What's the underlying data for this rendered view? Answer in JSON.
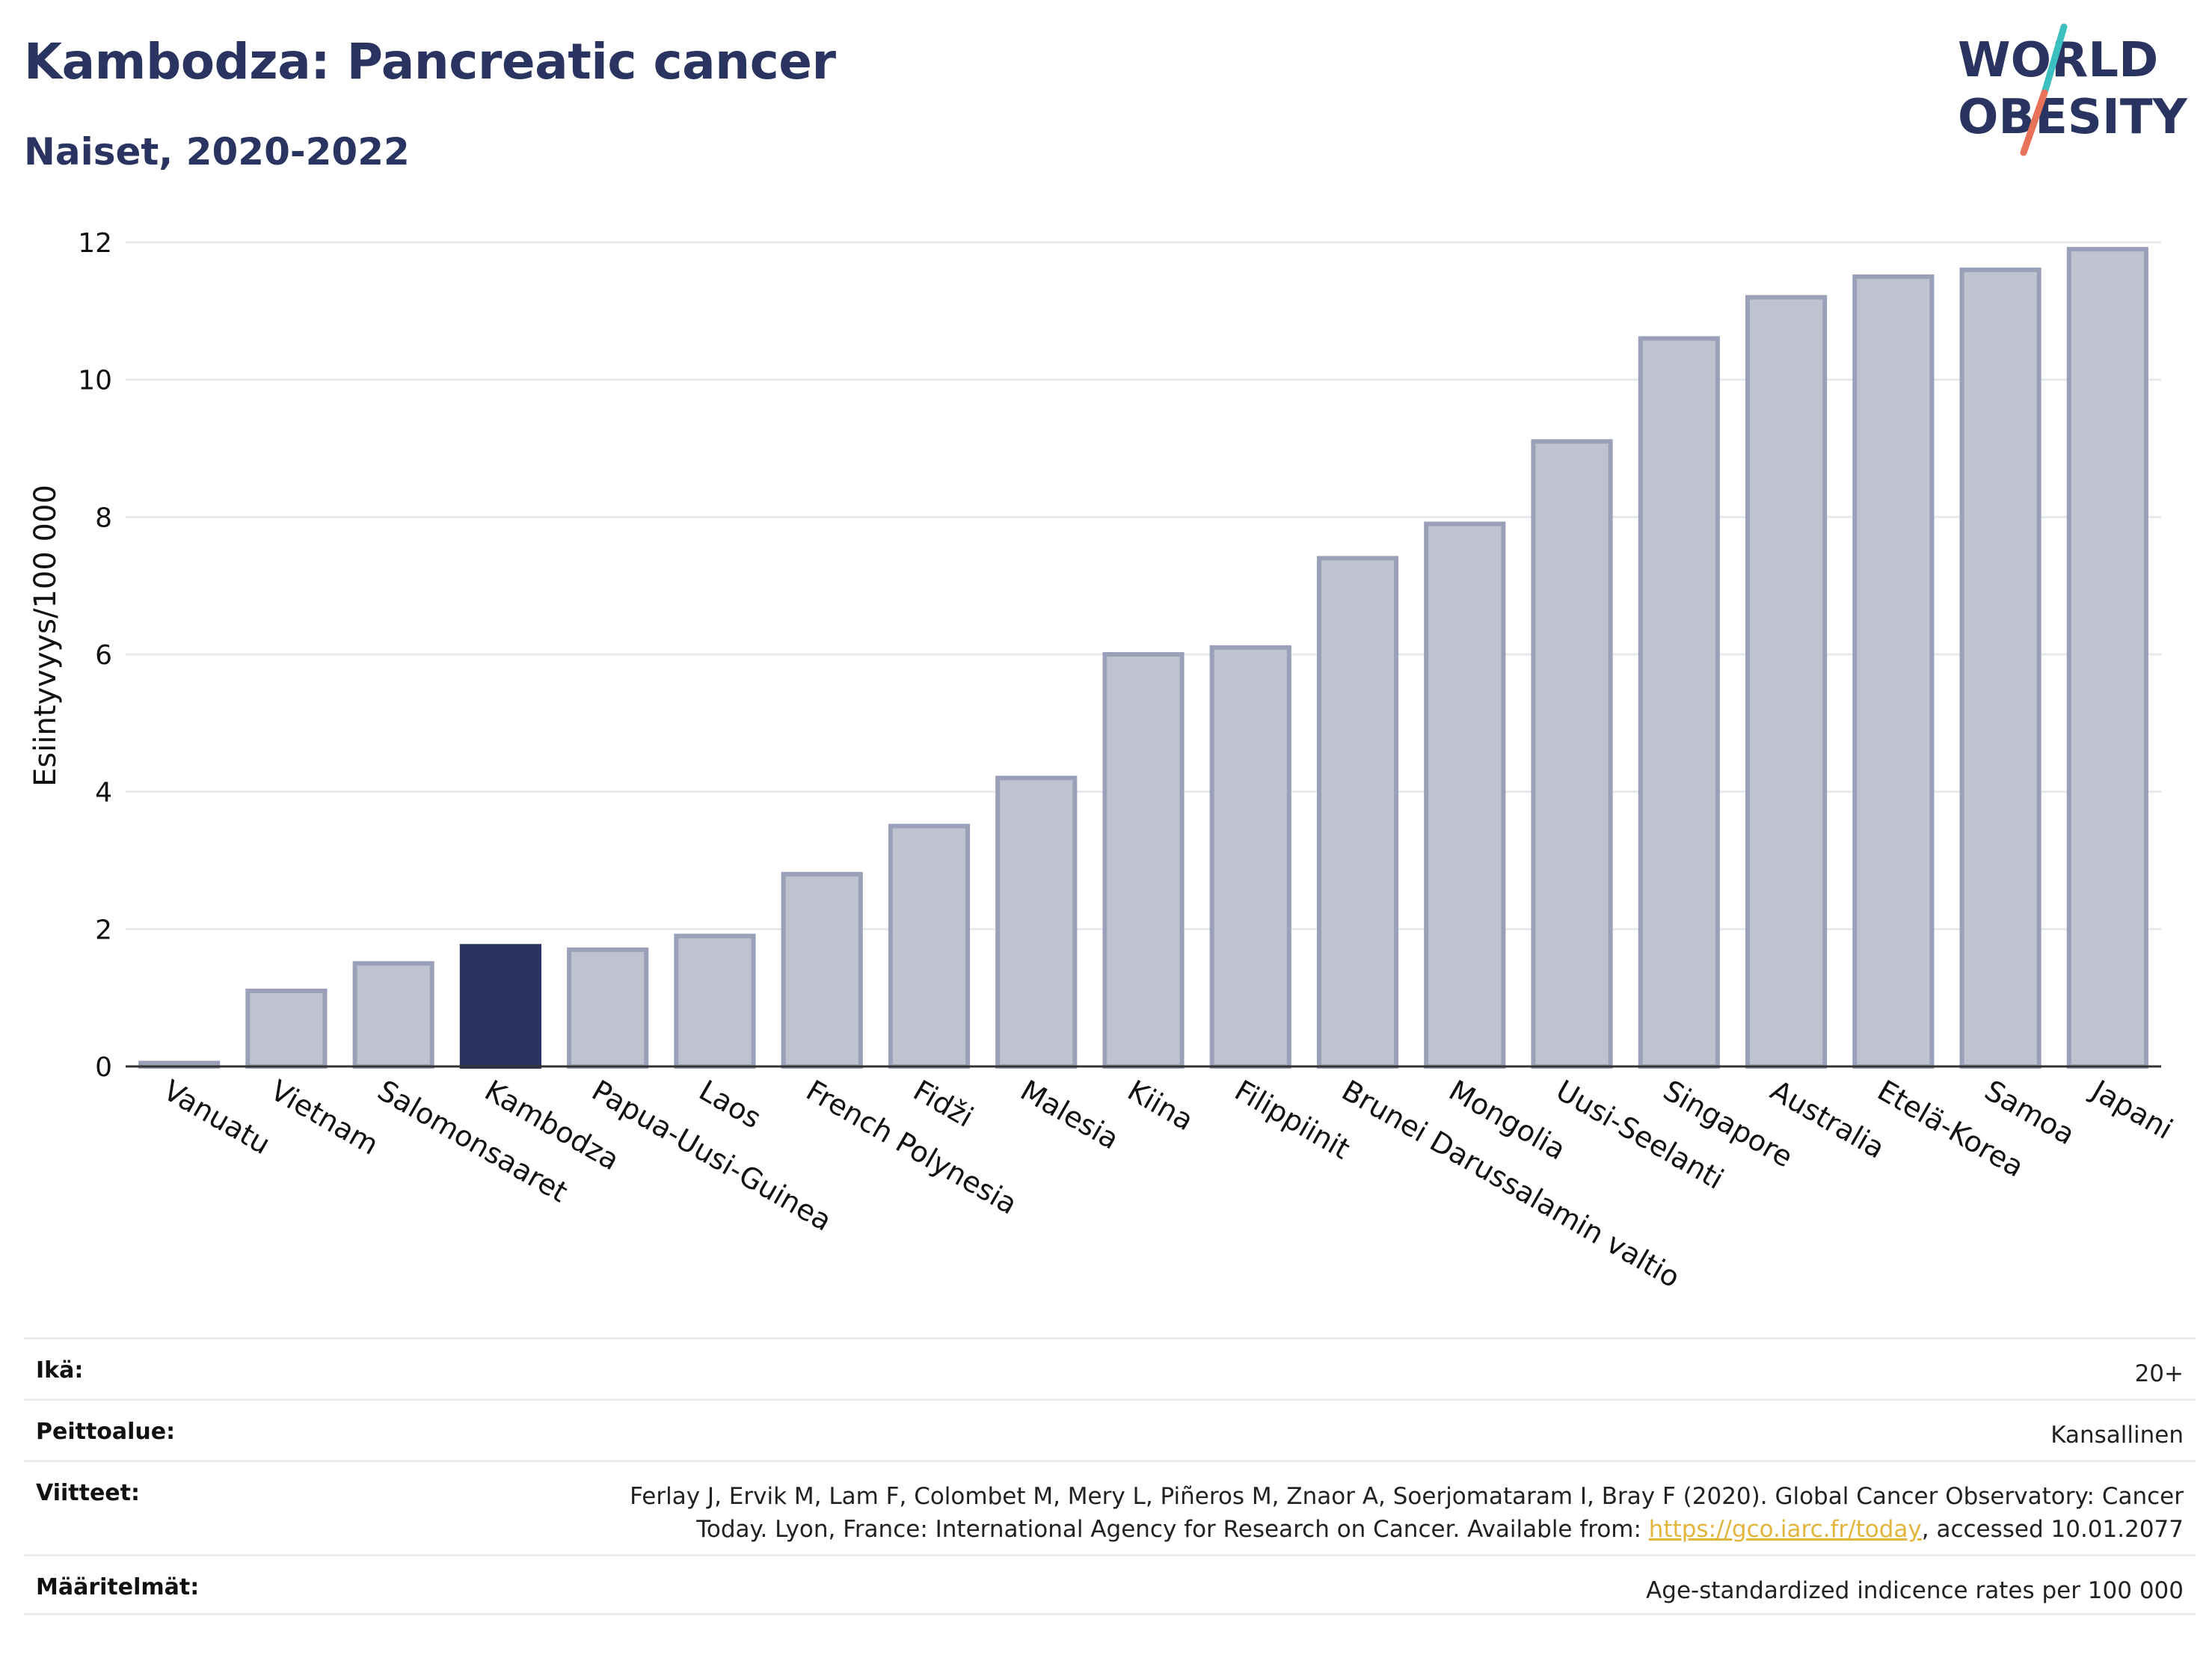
{
  "header": {
    "title": "Kambodza: Pancreatic cancer",
    "subtitle": "Naiset, 2020-2022"
  },
  "logo": {
    "line1": "WORLD",
    "line2": "OBESITY",
    "text_color": "#2a3461",
    "slash_colors": [
      "#3cbfbf",
      "#e8735a"
    ]
  },
  "chart_data": {
    "type": "bar",
    "categories": [
      "Vanuatu",
      "Vietnam",
      "Salomonsaaret",
      "Kambodza",
      "Papua-Uusi-Guinea",
      "Laos",
      "French Polynesia",
      "Fidži",
      "Malesia",
      "Kiina",
      "Filippiinit",
      "Brunei Darussalamin valtio",
      "Mongolia",
      "Uusi-Seelanti",
      "Singapore",
      "Australia",
      "Etelä-Korea",
      "Samoa",
      "Japani"
    ],
    "values": [
      0.05,
      1.1,
      1.5,
      1.75,
      1.7,
      1.9,
      2.8,
      3.5,
      4.2,
      6.0,
      6.1,
      7.4,
      7.9,
      9.1,
      10.6,
      11.2,
      11.5,
      11.6,
      11.9
    ],
    "highlight": "Kambodza",
    "ylabel": "Esiintyvyys/100 000",
    "xlabel": "",
    "ylim": [
      0,
      12
    ],
    "yticks": [
      0,
      2,
      4,
      6,
      8,
      10,
      12
    ],
    "grid": true,
    "colors": {
      "bar_fill": "#bfc3d0",
      "bar_stroke": "#9aa0b8",
      "highlight_fill": "#2a3461",
      "axis": "#333333",
      "grid": "#e6e9ee"
    }
  },
  "footer": {
    "rows": [
      {
        "label": "Ikä:",
        "value": "20+"
      },
      {
        "label": "Peittoalue:",
        "value": "Kansallinen"
      },
      {
        "label": "Viitteet:",
        "value_line1": "Ferlay J, Ervik M, Lam F, Colombet M, Mery L, Piñeros M, Znaor A, Soerjomataram I, Bray F (2020). Global Cancer Observatory: Cancer",
        "value_line2_before": "Today. Lyon, France: International Agency for Research on Cancer. Available from: ",
        "link": "https://gco.iarc.fr/today",
        "value_line2_after": ", accessed 10.01.2077"
      },
      {
        "label": "Määritelmät:",
        "value": "Age-standardized indicence rates per 100 000"
      }
    ]
  }
}
